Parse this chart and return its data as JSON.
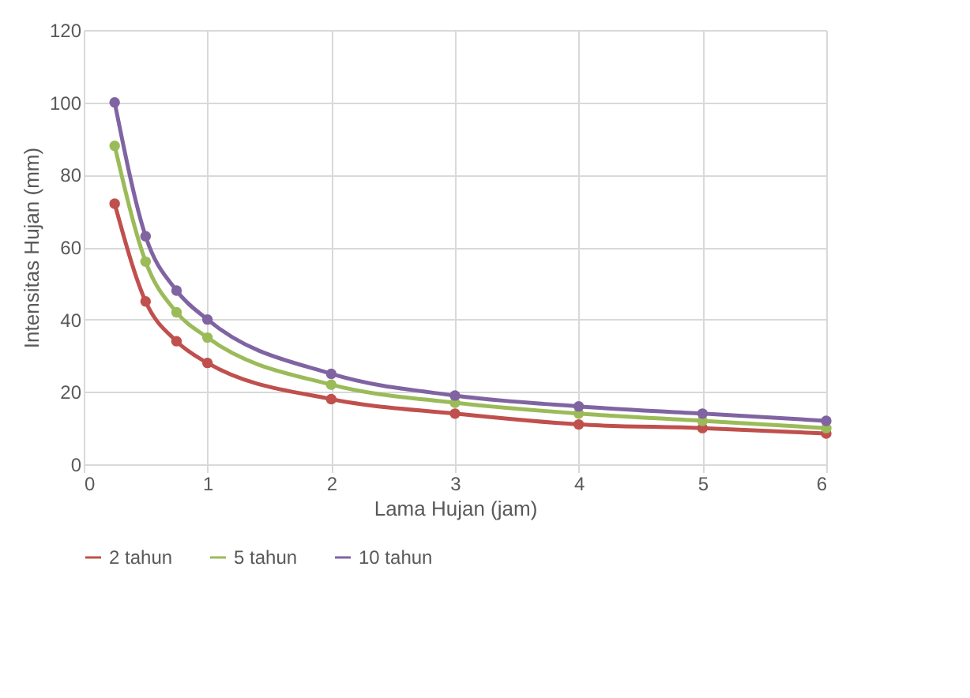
{
  "chart_data": {
    "type": "line",
    "xlabel": "Lama Hujan (jam)",
    "ylabel": "Intensitas Hujan (mm)",
    "x": [
      0.25,
      0.5,
      0.75,
      1,
      2,
      3,
      4,
      5,
      6
    ],
    "series": [
      {
        "name": "2 tahun",
        "color": "#c0504d",
        "values": [
          72,
          45,
          34,
          28,
          18,
          14,
          11,
          10,
          8.5
        ]
      },
      {
        "name": "5 tahun",
        "color": "#9bbb59",
        "values": [
          88,
          56,
          42,
          35,
          22,
          17,
          14,
          12,
          10
        ]
      },
      {
        "name": "10 tahun",
        "color": "#8064a2",
        "values": [
          100,
          63,
          48,
          40,
          25,
          19,
          16,
          14,
          12
        ]
      }
    ],
    "xlim": [
      0,
      6
    ],
    "xticks": [
      0,
      1,
      2,
      3,
      4,
      5,
      6
    ],
    "ylim": [
      0,
      120
    ],
    "yticks": [
      0,
      20,
      40,
      60,
      80,
      100,
      120
    ],
    "grid": true,
    "legend": "bottom",
    "marker": "circle",
    "line_style": "solid"
  }
}
